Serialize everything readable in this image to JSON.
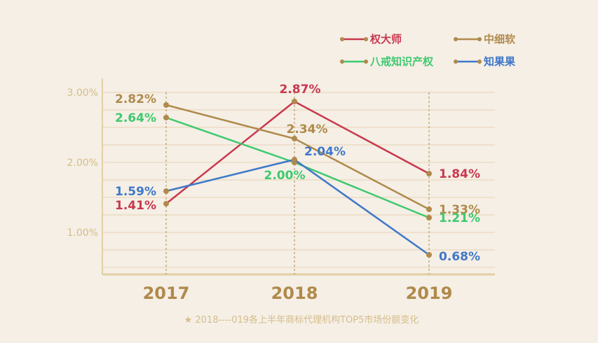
{
  "chart_data": {
    "type": "line",
    "categories": [
      "2017",
      "2018",
      "2019"
    ],
    "y_ticks": [
      "1.00%",
      "2.00%",
      "3.00%"
    ],
    "ylim": [
      0.4,
      3.2
    ],
    "grid": true,
    "legend_position": "top-right",
    "series": [
      {
        "name": "权大师",
        "color": "#c8384e",
        "values": [
          1.41,
          2.87,
          1.84
        ],
        "labels": [
          "1.41%",
          "2.87%",
          "1.84%"
        ]
      },
      {
        "name": "中细软",
        "color": "#b08a4c",
        "values": [
          2.82,
          2.34,
          1.33
        ],
        "labels": [
          "2.82%",
          "2.34%",
          "1.33%"
        ]
      },
      {
        "name": "八戒知识产权",
        "color": "#3ec96e",
        "values": [
          2.64,
          2.0,
          1.21
        ],
        "labels": [
          "2.64%",
          "2.00%",
          "1.21%"
        ]
      },
      {
        "name": "知果果",
        "color": "#3f78c8",
        "values": [
          1.59,
          2.04,
          0.68
        ],
        "labels": [
          "1.59%",
          "2.04%",
          "0.68%"
        ]
      }
    ],
    "caption": "★ 2018----019各上半年商标代理机构TOP5市场份额变化"
  }
}
